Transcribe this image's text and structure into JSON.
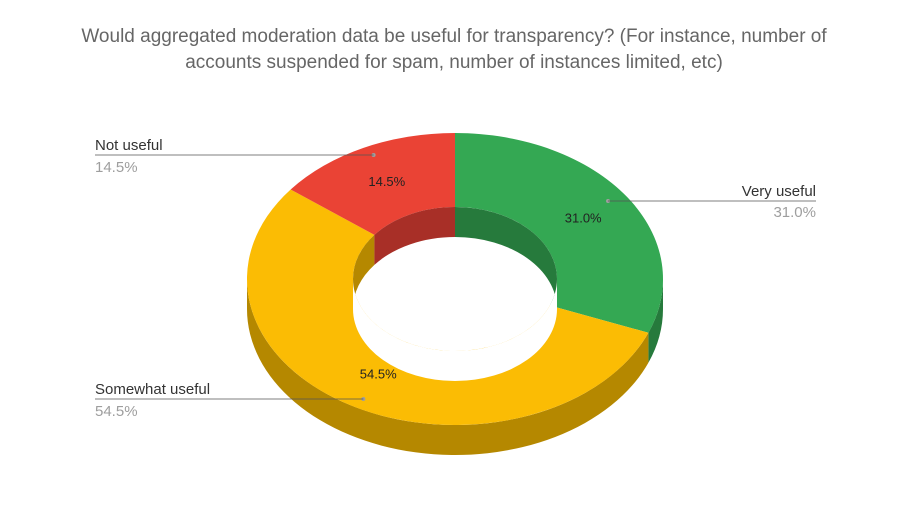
{
  "title_lines": [
    "Would aggregated moderation data be useful for transparency? (For instance, number of",
    "accounts suspended for spam, number of instances limited, etc)"
  ],
  "chart_data": {
    "type": "pie",
    "donut": true,
    "three_d": true,
    "title": "Would aggregated moderation data be useful for transparency? (For instance, number of accounts suspended for spam, number of instances limited, etc)",
    "categories": [
      "Very useful",
      "Somewhat useful",
      "Not useful"
    ],
    "values": [
      31.0,
      54.5,
      14.5
    ],
    "value_labels": [
      "31.0%",
      "54.5%",
      "14.5%"
    ],
    "colors": [
      "#34a853",
      "#fbbc04",
      "#ea4335"
    ],
    "side_colors": [
      "#267a3c",
      "#b58800",
      "#a82f27"
    ],
    "legend": "callout labels"
  }
}
